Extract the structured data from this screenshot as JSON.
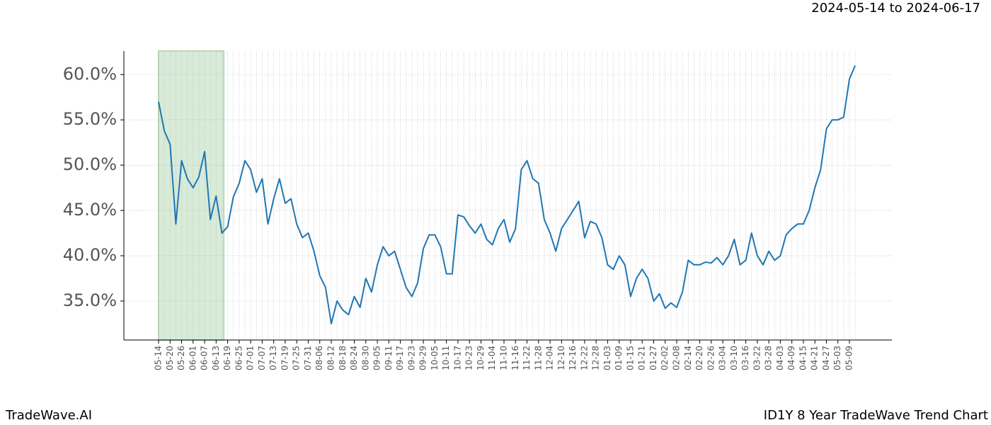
{
  "header": {
    "date_range": "2024-05-14 to 2024-06-17"
  },
  "chart_data": {
    "type": "line",
    "categories": [
      "05-14",
      null,
      "05-20",
      null,
      "05-26",
      null,
      "06-01",
      null,
      "06-07",
      null,
      "06-13",
      null,
      "06-19",
      null,
      "06-25",
      null,
      "07-01",
      null,
      "07-07",
      null,
      "07-13",
      null,
      "07-19",
      null,
      "07-25",
      null,
      "07-31",
      null,
      "08-06",
      null,
      "08-12",
      null,
      "08-18",
      null,
      "08-24",
      null,
      "08-30",
      null,
      "09-05",
      null,
      "09-11",
      null,
      "09-17",
      null,
      "09-23",
      null,
      "09-29",
      null,
      "10-05",
      null,
      "10-11",
      null,
      "10-17",
      null,
      "10-23",
      null,
      "10-29",
      null,
      "11-04",
      null,
      "11-10",
      null,
      "11-16",
      null,
      "11-22",
      null,
      "11-28",
      null,
      "12-04",
      null,
      "12-10",
      null,
      "12-16",
      null,
      "12-22",
      null,
      "12-28",
      null,
      "01-03",
      null,
      "01-09",
      null,
      "01-15",
      null,
      "01-21",
      null,
      "01-27",
      null,
      "02-02",
      null,
      "02-08",
      null,
      "02-14",
      null,
      "02-20",
      null,
      "02-26",
      null,
      "03-04",
      null,
      "03-10",
      null,
      "03-16",
      null,
      "03-22",
      null,
      "03-28",
      null,
      "04-03",
      null,
      "04-09",
      null,
      "04-15",
      null,
      "04-21",
      null,
      "04-27",
      null,
      "05-03",
      null,
      "05-09",
      null
    ],
    "values": [
      57.0,
      53.8,
      52.3,
      43.5,
      50.5,
      48.5,
      47.5,
      48.7,
      51.5,
      44.0,
      46.6,
      42.5,
      43.2,
      46.5,
      48.0,
      50.5,
      49.5,
      47.0,
      48.5,
      43.5,
      46.3,
      48.5,
      45.8,
      46.3,
      43.5,
      42.0,
      42.5,
      40.5,
      37.8,
      36.5,
      32.5,
      35.0,
      34.0,
      33.5,
      35.5,
      34.3,
      37.5,
      36.0,
      39.0,
      41.0,
      40.0,
      40.5,
      38.5,
      36.5,
      35.5,
      37.0,
      40.8,
      42.3,
      42.3,
      41.0,
      38.0,
      38.0,
      44.5,
      44.3,
      43.3,
      42.5,
      43.5,
      41.8,
      41.2,
      43.0,
      44.0,
      41.5,
      43.0,
      49.5,
      50.5,
      48.5,
      48.0,
      44.0,
      42.5,
      40.5,
      43.0,
      44.0,
      45.0,
      46.0,
      42.0,
      43.8,
      43.5,
      42.0,
      39.0,
      38.5,
      40.0,
      39.0,
      35.5,
      37.5,
      38.5,
      37.5,
      35.0,
      35.8,
      34.2,
      34.8,
      34.3,
      36.0,
      39.5,
      39.0,
      39.0,
      39.3,
      39.2,
      39.8,
      39.0,
      40.0,
      41.8,
      39.0,
      39.5,
      42.5,
      40.0,
      39.0,
      40.5,
      39.5,
      40.0,
      42.3,
      43.0,
      43.5,
      43.5,
      45.0,
      47.5,
      49.5,
      54.0,
      55.0,
      55.0,
      55.3,
      59.5,
      61.0
    ],
    "color": "#1f77b4",
    "ylim": [
      30.7,
      62.6
    ],
    "yticks": [
      {
        "value": 35,
        "label": "35.0%"
      },
      {
        "value": 40,
        "label": "40.0%"
      },
      {
        "value": 45,
        "label": "45.0%"
      },
      {
        "value": 50,
        "label": "50.0%"
      },
      {
        "value": 55,
        "label": "55.0%"
      },
      {
        "value": 60,
        "label": "60.0%"
      }
    ],
    "grid": true,
    "highlight_x": [
      0,
      11.33
    ],
    "highlight_color": "#d8ebd8"
  },
  "footer": {
    "left": "TradeWave.AI",
    "right": "ID1Y 8 Year TradeWave Trend Chart"
  }
}
